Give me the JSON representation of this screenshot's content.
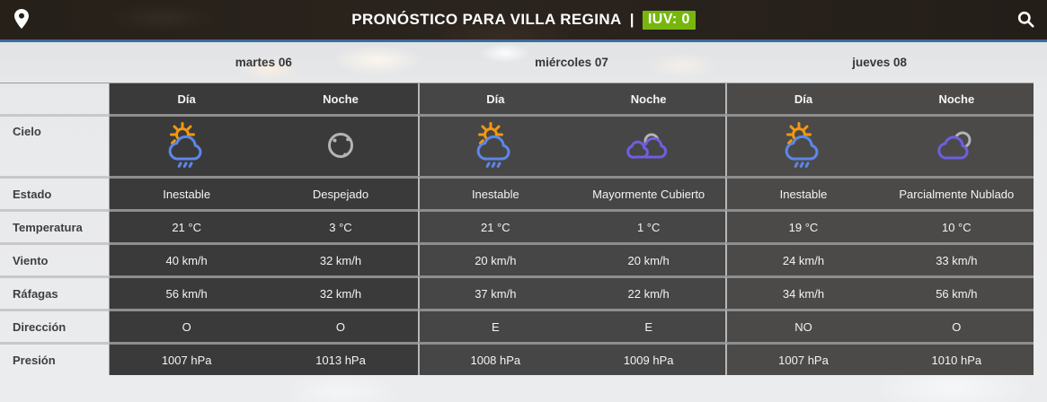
{
  "header": {
    "title": "PRONÓSTICO PARA VILLA REGINA",
    "separator": "|",
    "uv_badge": "IUV: 0",
    "uv_badge_color": "#77b70d"
  },
  "accent": {
    "topbar_underline": "#3a6b9e"
  },
  "icon_colors": {
    "sun": "#f2980f",
    "cloud_day": "#5c87ea",
    "cloud_night": "#6e5fe0",
    "moon": "#b4b4b4"
  },
  "forecast": {
    "days": [
      {
        "name": "martes 06",
        "block_color": "#3a3a3a"
      },
      {
        "name": "miércoles 07",
        "block_color": "#464646"
      },
      {
        "name": "jueves 08",
        "block_color": "#4b4a49"
      }
    ],
    "period_headers": [
      "Día",
      "Noche"
    ],
    "rows": [
      {
        "label": "Cielo",
        "type": "icon",
        "values": [
          "sun-cloud-rain",
          "moon-clear",
          "sun-cloud-rain",
          "night-mostly-cloudy",
          "sun-cloud-rain",
          "night-partly-cloudy"
        ]
      },
      {
        "label": "Estado",
        "type": "text",
        "values": [
          "Inestable",
          "Despejado",
          "Inestable",
          "Mayormente Cubierto",
          "Inestable",
          "Parcialmente Nublado"
        ]
      },
      {
        "label": "Temperatura",
        "type": "text",
        "values": [
          "21 °C",
          "3 °C",
          "21 °C",
          "1 °C",
          "19 °C",
          "10 °C"
        ]
      },
      {
        "label": "Viento",
        "type": "text",
        "values": [
          "40 km/h",
          "32 km/h",
          "20 km/h",
          "20 km/h",
          "24 km/h",
          "33 km/h"
        ]
      },
      {
        "label": "Ráfagas",
        "type": "text",
        "values": [
          "56 km/h",
          "32 km/h",
          "37 km/h",
          "22 km/h",
          "34 km/h",
          "56 km/h"
        ]
      },
      {
        "label": "Dirección",
        "type": "text",
        "values": [
          "O",
          "O",
          "E",
          "E",
          "NO",
          "O"
        ]
      },
      {
        "label": "Presión",
        "type": "text",
        "values": [
          "1007 hPa",
          "1013 hPa",
          "1008 hPa",
          "1009 hPa",
          "1007 hPa",
          "1010 hPa"
        ]
      }
    ]
  }
}
